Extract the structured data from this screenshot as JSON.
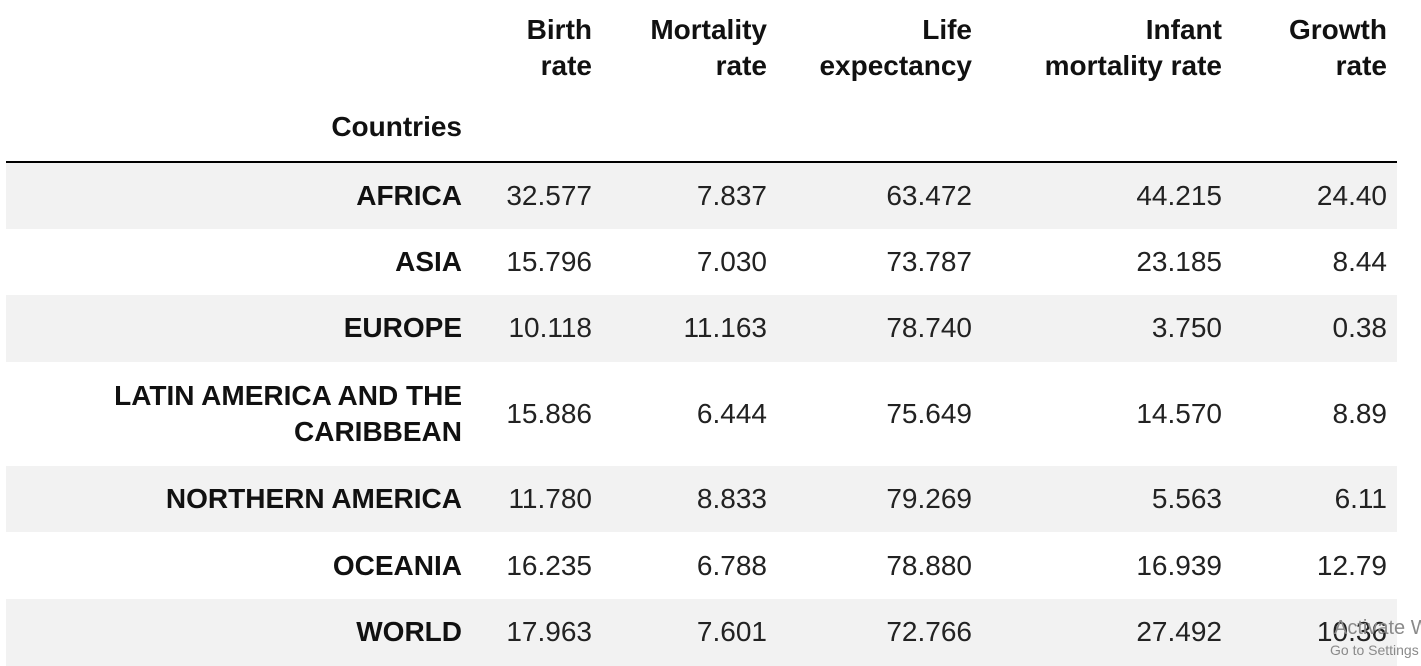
{
  "table": {
    "index_name": "Countries",
    "columns": [
      [
        "Birth",
        "rate"
      ],
      [
        "Mortality",
        "rate"
      ],
      [
        "Life",
        "expectancy"
      ],
      [
        "Infant",
        "mortality rate"
      ],
      [
        "Growth",
        "rate"
      ]
    ],
    "rows": [
      {
        "label": [
          "AFRICA"
        ],
        "values": [
          "32.577",
          "7.837",
          "63.472",
          "44.215",
          "24.40"
        ]
      },
      {
        "label": [
          "ASIA"
        ],
        "values": [
          "15.796",
          "7.030",
          "73.787",
          "23.185",
          "8.44"
        ]
      },
      {
        "label": [
          "EUROPE"
        ],
        "values": [
          "10.118",
          "11.163",
          "78.740",
          "3.750",
          "0.38"
        ]
      },
      {
        "label": [
          "LATIN AMERICA AND THE",
          "CARIBBEAN"
        ],
        "values": [
          "15.886",
          "6.444",
          "75.649",
          "14.570",
          "8.89"
        ]
      },
      {
        "label": [
          "NORTHERN AMERICA"
        ],
        "values": [
          "11.780",
          "8.833",
          "79.269",
          "5.563",
          "6.11"
        ]
      },
      {
        "label": [
          "OCEANIA"
        ],
        "values": [
          "16.235",
          "6.788",
          "78.880",
          "16.939",
          "12.79"
        ]
      },
      {
        "label": [
          "WORLD"
        ],
        "values": [
          "17.963",
          "7.601",
          "72.766",
          "27.492",
          "10.36"
        ]
      }
    ]
  },
  "watermark": {
    "title": "Activate W",
    "subtitle": "Go to Settings"
  }
}
